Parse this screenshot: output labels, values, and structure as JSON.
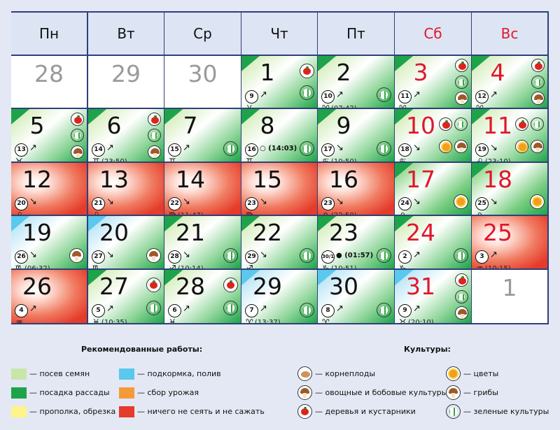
{
  "weekdays": [
    "Пн",
    "Вт",
    "Ср",
    "Чт",
    "Пт",
    "Сб",
    "Вс"
  ],
  "colors": {
    "sow": "#c8e6a8",
    "plant": "#1ea34a",
    "weed": "#fff48a",
    "feed": "#5bc8ee",
    "harvest": "#f59a3a",
    "nothing": "#e53b2a",
    "weekend": "#e0182c"
  },
  "cells": [
    {
      "day": "28"
    },
    {
      "day": "29"
    },
    {
      "day": "30"
    },
    {
      "day": "1",
      "moon": "9",
      "dir": "↗",
      "zodiac": "♓",
      "ztime": "",
      "bg": "gl",
      "icons": [
        "tomato",
        "greens"
      ]
    },
    {
      "day": "2",
      "moon": "10",
      "dir": "↗",
      "zodiac": "♈",
      "ztime": "(07:42)",
      "bg": "gl",
      "icons": [
        "greens"
      ]
    },
    {
      "day": "3",
      "moon": "11",
      "dir": "↗",
      "zodiac": "♈",
      "ztime": "",
      "bg": "gl",
      "icons": [
        "tomato",
        "greens",
        "mush"
      ],
      "we": true
    },
    {
      "day": "4",
      "moon": "12",
      "dir": "↗",
      "zodiac": "♈",
      "ztime": "",
      "bg": "gl",
      "icons": [
        "tomato",
        "greens",
        "mush"
      ],
      "we": true
    },
    {
      "day": "5",
      "moon": "13",
      "dir": "↗",
      "zodiac": "♉",
      "ztime": "",
      "bg": "gl",
      "icons": [
        "tomato",
        "greens",
        "mush"
      ]
    },
    {
      "day": "6",
      "moon": "14",
      "dir": "↗",
      "zodiac": "♊",
      "ztime": "(23:50)",
      "bg": "gl",
      "icons": [
        "tomato",
        "greens",
        "mush"
      ]
    },
    {
      "day": "7",
      "moon": "15",
      "dir": "↗",
      "zodiac": "♊",
      "ztime": "",
      "bg": "gl",
      "icons": [
        "greens"
      ]
    },
    {
      "day": "8",
      "moon": "16",
      "dir": "",
      "phase": "○ (14:03)",
      "zodiac": "♊",
      "ztime": "",
      "bg": "gl",
      "icons": [
        "greens"
      ]
    },
    {
      "day": "9",
      "moon": "17",
      "dir": "↘",
      "zodiac": "♋",
      "ztime": "(10:50)",
      "bg": "gl",
      "icons": [
        "greens"
      ]
    },
    {
      "day": "10",
      "moon": "18",
      "dir": "↘",
      "zodiac": "♋",
      "ztime": "",
      "bg": "gl",
      "icons": [
        "tomato",
        "greens",
        "flower",
        "mush"
      ],
      "we": true
    },
    {
      "day": "11",
      "moon": "19",
      "dir": "↘",
      "zodiac": "♌",
      "ztime": "(23:10)",
      "bg": "gl",
      "icons": [
        "tomato",
        "greens",
        "flower",
        "mush"
      ],
      "we": true
    },
    {
      "day": "12",
      "moon": "20",
      "dir": "↘",
      "zodiac": "♌",
      "ztime": "",
      "bg": "red"
    },
    {
      "day": "13",
      "moon": "21",
      "dir": "↘",
      "zodiac": "♌",
      "ztime": "",
      "bg": "red"
    },
    {
      "day": "14",
      "moon": "22",
      "dir": "↘",
      "zodiac": "♍",
      "ztime": "(11:47)",
      "bg": "red"
    },
    {
      "day": "15",
      "moon": "23",
      "dir": "↘",
      "zodiac": "♍",
      "ztime": "",
      "bg": "red"
    },
    {
      "day": "16",
      "moon": "23",
      "dir": "↘",
      "zodiac": "♎",
      "ztime": "(22:50)",
      "bg": "red"
    },
    {
      "day": "17",
      "moon": "24",
      "dir": "↘",
      "zodiac": "♎",
      "ztime": "",
      "bg": "g",
      "icons": [
        "flower"
      ],
      "we": true
    },
    {
      "day": "18",
      "moon": "25",
      "dir": "↘",
      "zodiac": "♎",
      "ztime": "",
      "bg": "g",
      "icons": [
        "flower"
      ],
      "we": true
    },
    {
      "day": "19",
      "moon": "26",
      "dir": "↘",
      "zodiac": "♏",
      "ztime": "(06:32)",
      "bg": "bl",
      "icons": [
        "mush"
      ]
    },
    {
      "day": "20",
      "moon": "27",
      "dir": "↘",
      "zodiac": "♏",
      "ztime": "",
      "bg": "bl",
      "icons": [
        "mush"
      ]
    },
    {
      "day": "21",
      "moon": "28",
      "dir": "↘",
      "zodiac": "♐",
      "ztime": "(10:14)",
      "bg": "gl",
      "icons": [
        "greens"
      ]
    },
    {
      "day": "22",
      "moon": "29",
      "dir": "↘",
      "zodiac": "♐",
      "ztime": "",
      "bg": "gl",
      "icons": [
        "greens"
      ]
    },
    {
      "day": "23",
      "moon": "30/1",
      "dir": "",
      "phase": "● (01:57)",
      "zodiac": "♑",
      "ztime": "(10:51)",
      "bg": "gl",
      "icons": [
        "greens"
      ]
    },
    {
      "day": "24",
      "moon": "2",
      "dir": "↗",
      "zodiac": "♑",
      "ztime": "",
      "bg": "gl",
      "icons": [
        "greens"
      ],
      "we": true
    },
    {
      "day": "25",
      "moon": "3",
      "dir": "↗",
      "zodiac": "♒",
      "ztime": "(10:15)",
      "bg": "red",
      "we": true
    },
    {
      "day": "26",
      "moon": "4",
      "dir": "↗",
      "zodiac": "♒",
      "ztime": "",
      "bg": "red"
    },
    {
      "day": "27",
      "moon": "5",
      "dir": "↗",
      "zodiac": "♓",
      "ztime": "(10:35)",
      "bg": "gl",
      "icons": [
        "tomato",
        "greens"
      ]
    },
    {
      "day": "28",
      "moon": "6",
      "dir": "↗",
      "zodiac": "♓",
      "ztime": "",
      "bg": "gl",
      "icons": [
        "tomato",
        "greens"
      ]
    },
    {
      "day": "29",
      "moon": "7",
      "dir": "↗",
      "zodiac": "♈",
      "ztime": "(13:37)",
      "bg": "bl",
      "icons": [
        "greens"
      ]
    },
    {
      "day": "30",
      "moon": "8",
      "dir": "↗",
      "zodiac": "♈",
      "ztime": "",
      "bg": "bl",
      "icons": [
        "greens"
      ]
    },
    {
      "day": "31",
      "moon": "9",
      "dir": "↗",
      "zodiac": "♉",
      "ztime": "(20:10)",
      "bg": "bl",
      "icons": [
        "tomato",
        "greens",
        "mush"
      ],
      "we": true
    },
    {
      "day": "1"
    }
  ],
  "legend": {
    "works_title": "Рекомендованные работы:",
    "crops_title": "Культуры:",
    "works": [
      {
        "label": "— посев семян",
        "color": "#c8e6a8"
      },
      {
        "label": "— посадка рассады",
        "color": "#1ea34a"
      },
      {
        "label": "— прополка, обрезка",
        "color": "#fff48a"
      },
      {
        "label": "— подкормка, полив",
        "color": "#5bc8ee"
      },
      {
        "label": "— сбор урожая",
        "color": "#f59a3a"
      },
      {
        "label": "— ничего не сеять и не сажать",
        "color": "#e53b2a"
      }
    ],
    "crops": [
      {
        "label": "— корнеплоды",
        "icon": "root"
      },
      {
        "label": "— овощные и бобовые культуры",
        "icon": "mush"
      },
      {
        "label": "— деревья и кустарники",
        "icon": "tomato"
      },
      {
        "label": "— цветы",
        "icon": "flower"
      },
      {
        "label": "— грибы",
        "icon": "mush"
      },
      {
        "label": "— зеленые культуры",
        "icon": "greens"
      }
    ]
  }
}
